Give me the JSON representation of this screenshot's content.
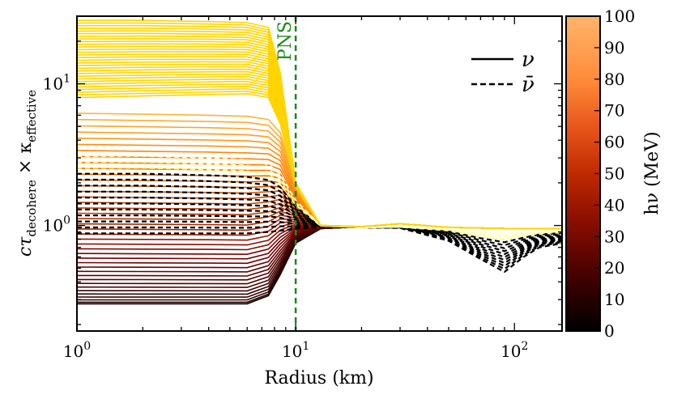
{
  "chart_data": {
    "type": "line",
    "title": "",
    "xlabel": "Radius (km)",
    "ylabel": "cτ_decohere × κ_effective",
    "ylabel_parts": {
      "base": "cτ",
      "sub1": "decohere",
      "times": " × κ",
      "sub2": "effective"
    },
    "xscale": "log",
    "yscale": "log",
    "xlim": [
      1,
      165
    ],
    "ylim": [
      0.18,
      30
    ],
    "x_ticks": [
      {
        "value": 1,
        "base": "10",
        "exp": "0"
      },
      {
        "value": 10,
        "base": "10",
        "exp": "1"
      },
      {
        "value": 100,
        "base": "10",
        "exp": "2"
      }
    ],
    "y_ticks": [
      {
        "value": 1,
        "base": "10",
        "exp": "0"
      },
      {
        "value": 10,
        "base": "10",
        "exp": "1"
      }
    ],
    "annotation": {
      "text": "PNS",
      "x": 10,
      "style": "dashed",
      "color": "#1a8a1a"
    },
    "legend": {
      "position": "top-right",
      "entries": [
        {
          "label": "ν",
          "style": "solid"
        },
        {
          "label": "ν̄",
          "style": "dashed"
        }
      ]
    },
    "colorbar": {
      "label": "hν (MeV)",
      "min": 0,
      "max": 100,
      "ticks": [
        "0",
        "10",
        "20",
        "30",
        "40",
        "50",
        "60",
        "70",
        "80",
        "90",
        "100"
      ],
      "colormap": "afmhot"
    },
    "curve_groups": {
      "note": "approximate envelopes read from figure; each group holds many curves at different energies",
      "neutrino_yellow": {
        "energy_range": [
          55,
          100
        ],
        "inner_value_range": [
          7.5,
          28
        ],
        "drop_radius_km": 8.5,
        "outer_value": 0.95
      },
      "neutrino_dark": {
        "energy_range": [
          0,
          55
        ],
        "inner_value_range": [
          0.28,
          6.3
        ],
        "converge_radius_km": 10,
        "outer_value": 0.95
      },
      "antineutrino": {
        "energy_range": [
          0,
          100
        ],
        "inner_value_range": [
          0.85,
          3.2
        ],
        "outer_dip_min": 0.47,
        "dip_radius_km": 90
      }
    },
    "series": [
      {
        "name": "ν high energy (yellow)",
        "style": "solid",
        "x": [
          1,
          2,
          4,
          6,
          7.5,
          8.5,
          10,
          13,
          20,
          30,
          50,
          100,
          165
        ],
        "y": [
          28,
          28,
          27.5,
          27,
          25,
          12,
          2.0,
          1.0,
          0.98,
          1.03,
          0.97,
          0.95,
          0.95
        ]
      },
      {
        "name": "ν mid energy (red)",
        "style": "solid",
        "x": [
          1,
          2,
          4,
          6,
          7.5,
          8.5,
          10,
          13,
          20,
          30,
          50,
          100,
          165
        ],
        "y": [
          6.2,
          6.1,
          6.0,
          5.9,
          5.6,
          4.5,
          2.0,
          1.0,
          0.98,
          1.03,
          0.97,
          0.95,
          0.95
        ]
      },
      {
        "name": "ν low energy (black)",
        "style": "solid",
        "x": [
          1,
          2,
          4,
          6,
          7.5,
          8.5,
          10,
          13,
          20,
          30,
          50,
          100,
          165
        ],
        "y": [
          0.28,
          0.28,
          0.28,
          0.28,
          0.32,
          0.45,
          0.75,
          0.95,
          0.98,
          1.03,
          0.97,
          0.95,
          0.95
        ]
      },
      {
        "name": "ν̄ high energy",
        "style": "dashed",
        "x": [
          1,
          2,
          4,
          6,
          7.5,
          8.5,
          10,
          13,
          20,
          30,
          50,
          70,
          90,
          110,
          130,
          165
        ],
        "y": [
          3.1,
          3.1,
          3.0,
          2.9,
          2.7,
          2.3,
          1.5,
          1.0,
          0.97,
          0.98,
          0.95,
          0.9,
          0.88,
          0.9,
          0.92,
          0.93
        ]
      },
      {
        "name": "ν̄ low energy",
        "style": "dashed",
        "x": [
          1,
          2,
          4,
          6,
          7.5,
          8.5,
          10,
          13,
          20,
          30,
          50,
          70,
          90,
          110,
          130,
          165
        ],
        "y": [
          0.88,
          0.88,
          0.88,
          0.88,
          0.9,
          0.92,
          0.95,
          0.97,
          0.97,
          0.96,
          0.78,
          0.58,
          0.47,
          0.6,
          0.7,
          0.75
        ]
      }
    ]
  }
}
